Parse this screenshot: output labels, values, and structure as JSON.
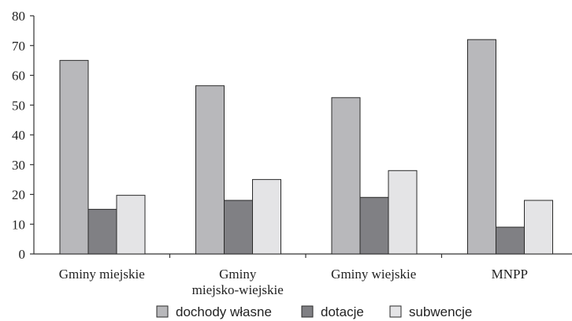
{
  "chart_data": {
    "type": "bar",
    "categories": [
      "Gminy miejskie",
      "Gminy miejsko-wiejskie",
      "Gminy wiejskie",
      "MNPP"
    ],
    "category_lines": [
      [
        "Gminy miejskie"
      ],
      [
        "Gminy",
        "miejsko-wiejskie"
      ],
      [
        "Gminy wiejskie"
      ],
      [
        "MNPP"
      ]
    ],
    "series": [
      {
        "name": "dochody własne",
        "color": "#b8b8bb",
        "values": [
          65,
          56.5,
          52.5,
          72
        ]
      },
      {
        "name": "dotacje",
        "color": "#808084",
        "values": [
          15,
          18,
          19,
          9
        ]
      },
      {
        "name": "subwencje",
        "color": "#e4e4e6",
        "values": [
          19.7,
          25,
          28,
          18
        ]
      }
    ],
    "ylim": [
      0,
      80
    ],
    "yticks": [
      0,
      10,
      20,
      30,
      40,
      50,
      60,
      70,
      80
    ],
    "grid": false,
    "legend_position": "bottom",
    "title": "",
    "xlabel": "",
    "ylabel": ""
  }
}
